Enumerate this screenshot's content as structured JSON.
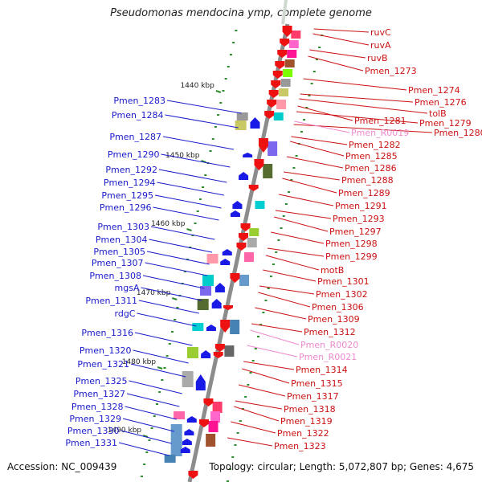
{
  "title": "Pseudomonas mendocina ymp, complete genome",
  "footer": {
    "accession": "Accession: NC_009439",
    "topology": "Topology: circular; Length: 5,072,807 bp; Genes: 4,675"
  },
  "colors": {
    "left_label": "#1a1acc",
    "right_label": "#cc1111",
    "rna_label": "#ee88cc",
    "axis": "#8c8c8c",
    "tick": "#2e8b2e",
    "forward_arrow": "#1a1ae6",
    "reverse_arrow": "#ee1111"
  },
  "scale_marks": [
    "1440 kbp",
    "1450 kbp",
    "1460 kbp",
    "1470 kbp",
    "1480 kbp",
    "1490 kbp"
  ],
  "left_labels": [
    "Pmen_1283",
    "Pmen_1284",
    "Pmen_1287",
    "Pmen_1290",
    "Pmen_1292",
    "Pmen_1294",
    "Pmen_1295",
    "Pmen_1296",
    "Pmen_1303",
    "Pmen_1304",
    "Pmen_1305",
    "Pmen_1307",
    "Pmen_1308",
    "mgsA",
    "Pmen_1311",
    "rdgC",
    "Pmen_1316",
    "Pmen_1320",
    "Pmen_1321",
    "Pmen_1325",
    "Pmen_1327",
    "Pmen_1328",
    "Pmen_1329",
    "Pmen_1330",
    "Pmen_1331"
  ],
  "right_labels": [
    "ruvC",
    "ruvA",
    "ruvB",
    "Pmen_1273",
    "Pmen_1274",
    "Pmen_1276",
    "tolB",
    "Pmen_1279",
    "Pmen_1280",
    "Pmen_1281",
    "Pmen_R0019",
    "Pmen_1282",
    "Pmen_1285",
    "Pmen_1286",
    "Pmen_1288",
    "Pmen_1289",
    "Pmen_1291",
    "Pmen_1293",
    "Pmen_1297",
    "Pmen_1298",
    "Pmen_1299",
    "motB",
    "Pmen_1301",
    "Pmen_1302",
    "Pmen_1306",
    "Pmen_1309",
    "Pmen_1312",
    "Pmen_R0020",
    "Pmen_R0021",
    "Pmen_1314",
    "Pmen_1315",
    "Pmen_1317",
    "Pmen_1318",
    "Pmen_1319",
    "Pmen_1322",
    "Pmen_1323"
  ],
  "rna_labels": [
    "Pmen_R0019",
    "Pmen_R0020",
    "Pmen_R0021"
  ]
}
